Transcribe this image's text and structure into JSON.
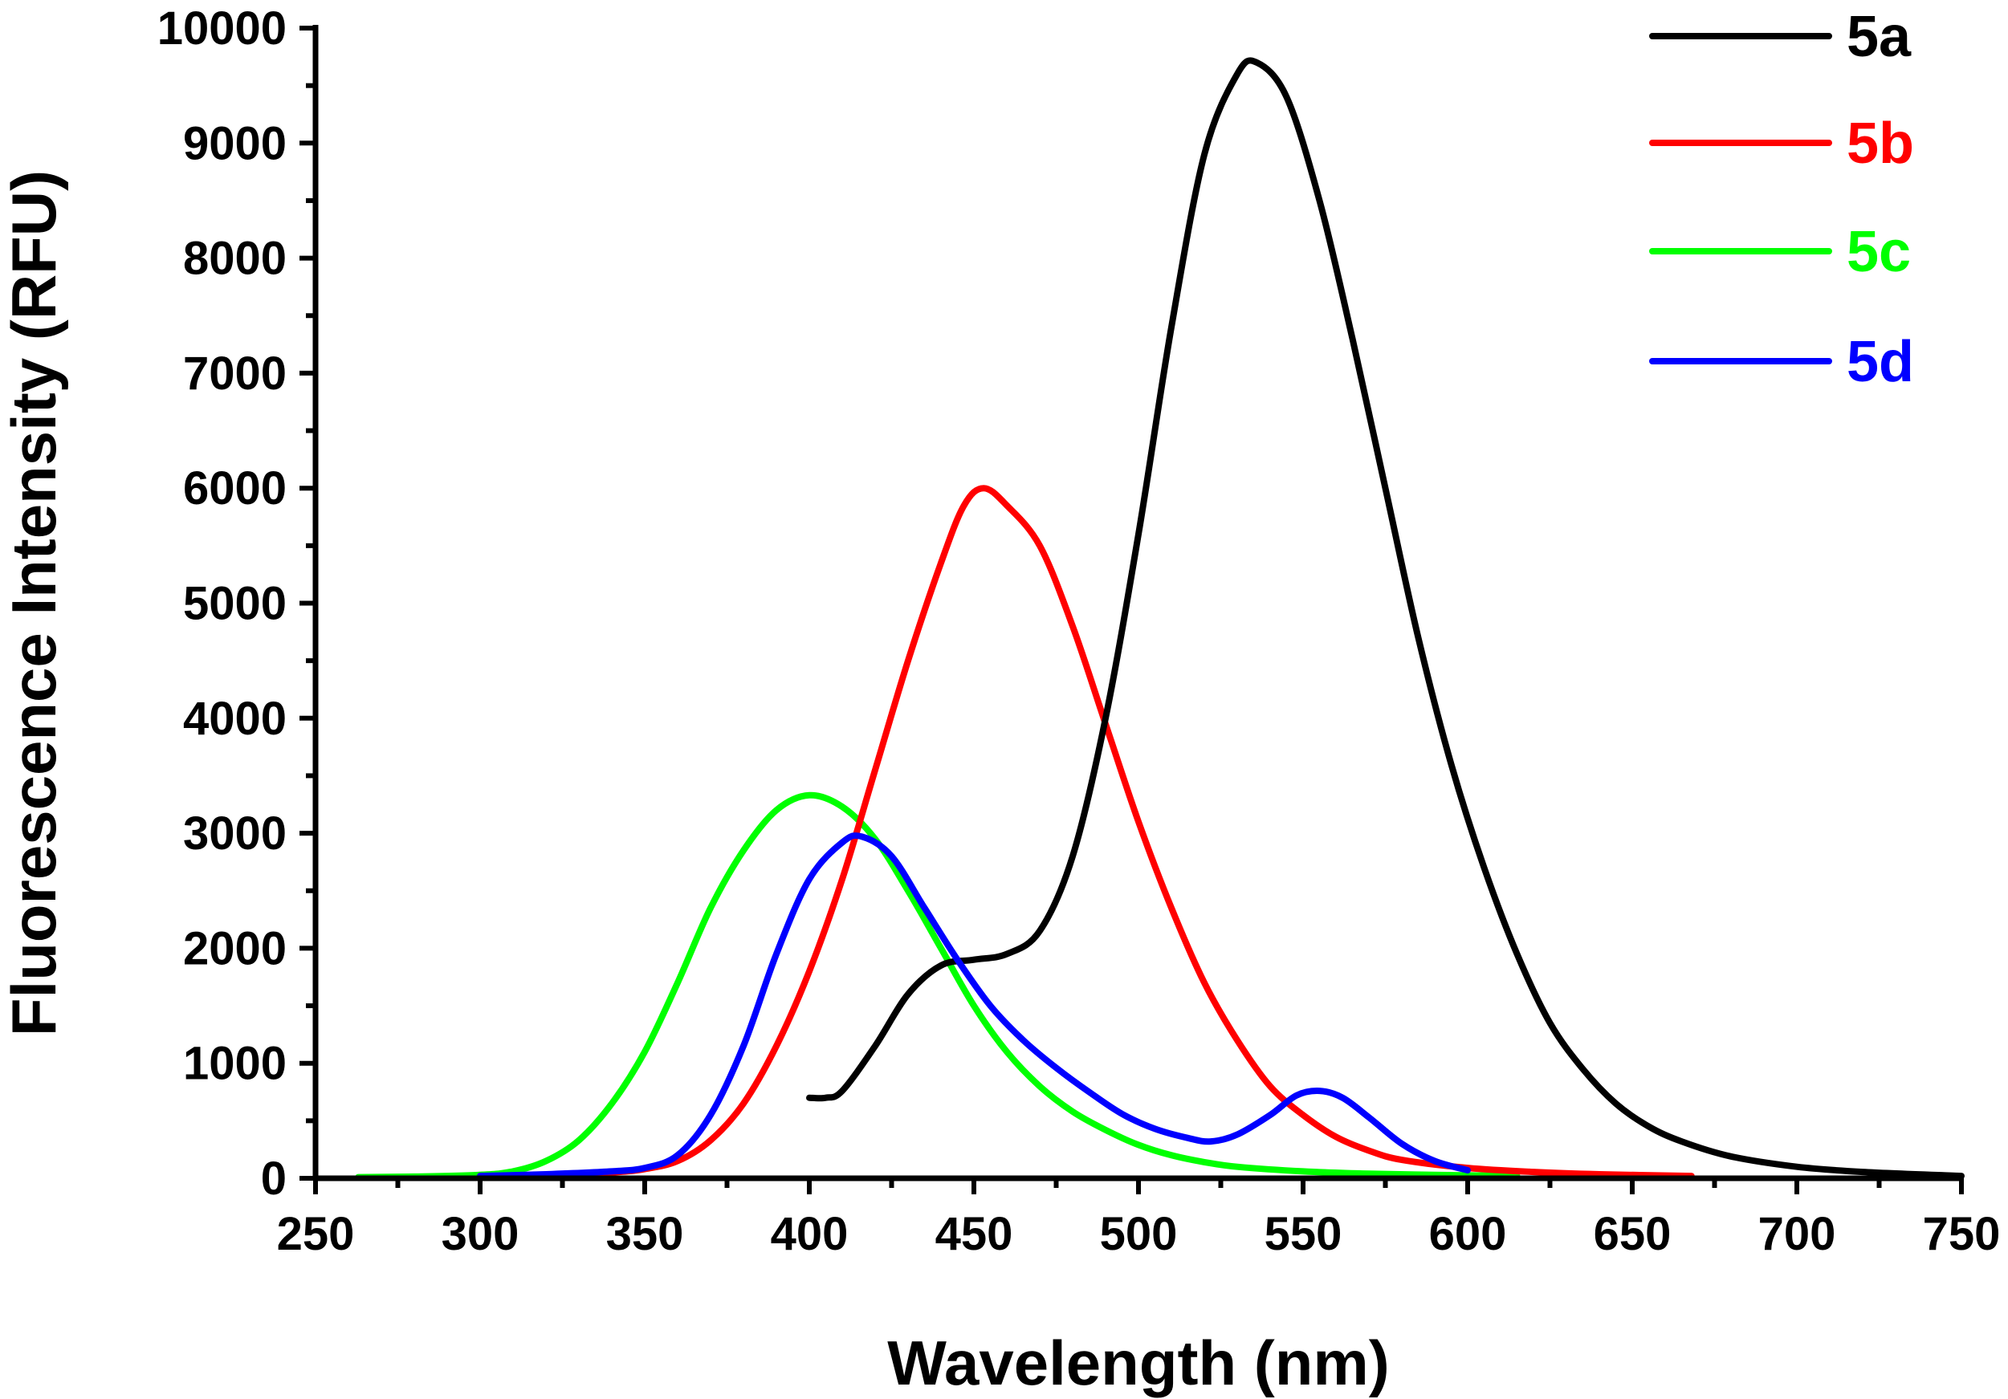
{
  "chart_data": {
    "type": "line",
    "title": "",
    "xlabel": "Wavelength (nm)",
    "ylabel": "Fluorescence Intensity (RFU)",
    "xlim": [
      250,
      750
    ],
    "ylim": [
      0,
      10000
    ],
    "x_ticks": [
      250,
      300,
      350,
      400,
      450,
      500,
      550,
      600,
      650,
      700,
      750
    ],
    "y_ticks": [
      0,
      1000,
      2000,
      3000,
      4000,
      5000,
      6000,
      7000,
      8000,
      9000,
      10000
    ],
    "grid": false,
    "legend_position": "top-right",
    "series": [
      {
        "name": "5a",
        "color": "#000000",
        "points": [
          [
            400,
            700
          ],
          [
            405,
            700
          ],
          [
            410,
            760
          ],
          [
            420,
            1150
          ],
          [
            430,
            1600
          ],
          [
            440,
            1850
          ],
          [
            450,
            1900
          ],
          [
            460,
            1950
          ],
          [
            470,
            2150
          ],
          [
            480,
            2800
          ],
          [
            490,
            4000
          ],
          [
            500,
            5600
          ],
          [
            510,
            7400
          ],
          [
            520,
            8900
          ],
          [
            530,
            9600
          ],
          [
            536,
            9700
          ],
          [
            545,
            9400
          ],
          [
            555,
            8500
          ],
          [
            565,
            7300
          ],
          [
            575,
            6000
          ],
          [
            585,
            4700
          ],
          [
            595,
            3600
          ],
          [
            605,
            2700
          ],
          [
            615,
            1950
          ],
          [
            625,
            1350
          ],
          [
            635,
            950
          ],
          [
            645,
            650
          ],
          [
            655,
            450
          ],
          [
            665,
            320
          ],
          [
            680,
            190
          ],
          [
            700,
            100
          ],
          [
            720,
            55
          ],
          [
            750,
            20
          ]
        ]
      },
      {
        "name": "5b",
        "color": "#ff0000",
        "points": [
          [
            300,
            20
          ],
          [
            320,
            25
          ],
          [
            340,
            50
          ],
          [
            350,
            80
          ],
          [
            360,
            150
          ],
          [
            370,
            330
          ],
          [
            380,
            650
          ],
          [
            390,
            1150
          ],
          [
            400,
            1800
          ],
          [
            410,
            2600
          ],
          [
            420,
            3550
          ],
          [
            430,
            4500
          ],
          [
            440,
            5350
          ],
          [
            447,
            5850
          ],
          [
            453,
            6000
          ],
          [
            460,
            5850
          ],
          [
            470,
            5500
          ],
          [
            480,
            4800
          ],
          [
            490,
            3950
          ],
          [
            500,
            3100
          ],
          [
            510,
            2350
          ],
          [
            520,
            1700
          ],
          [
            530,
            1200
          ],
          [
            540,
            800
          ],
          [
            550,
            550
          ],
          [
            560,
            360
          ],
          [
            570,
            240
          ],
          [
            580,
            160
          ],
          [
            600,
            90
          ],
          [
            620,
            55
          ],
          [
            640,
            35
          ],
          [
            668,
            20
          ]
        ]
      },
      {
        "name": "5c",
        "color": "#00ff00",
        "points": [
          [
            263,
            10
          ],
          [
            280,
            15
          ],
          [
            300,
            30
          ],
          [
            310,
            60
          ],
          [
            320,
            150
          ],
          [
            330,
            330
          ],
          [
            340,
            650
          ],
          [
            350,
            1100
          ],
          [
            360,
            1700
          ],
          [
            370,
            2350
          ],
          [
            380,
            2850
          ],
          [
            390,
            3200
          ],
          [
            400,
            3330
          ],
          [
            410,
            3230
          ],
          [
            420,
            2950
          ],
          [
            430,
            2500
          ],
          [
            440,
            2000
          ],
          [
            450,
            1500
          ],
          [
            460,
            1100
          ],
          [
            470,
            800
          ],
          [
            480,
            580
          ],
          [
            490,
            420
          ],
          [
            500,
            290
          ],
          [
            510,
            200
          ],
          [
            520,
            140
          ],
          [
            530,
            100
          ],
          [
            550,
            60
          ],
          [
            570,
            40
          ],
          [
            600,
            25
          ],
          [
            615,
            20
          ]
        ]
      },
      {
        "name": "5d",
        "color": "#0000ff",
        "points": [
          [
            300,
            20
          ],
          [
            320,
            35
          ],
          [
            340,
            60
          ],
          [
            350,
            90
          ],
          [
            360,
            200
          ],
          [
            370,
            550
          ],
          [
            380,
            1150
          ],
          [
            390,
            1950
          ],
          [
            400,
            2600
          ],
          [
            410,
            2920
          ],
          [
            416,
            2970
          ],
          [
            425,
            2800
          ],
          [
            435,
            2350
          ],
          [
            445,
            1900
          ],
          [
            455,
            1500
          ],
          [
            465,
            1200
          ],
          [
            475,
            960
          ],
          [
            485,
            750
          ],
          [
            495,
            560
          ],
          [
            505,
            430
          ],
          [
            515,
            350
          ],
          [
            522,
            320
          ],
          [
            530,
            380
          ],
          [
            540,
            550
          ],
          [
            548,
            720
          ],
          [
            555,
            760
          ],
          [
            562,
            700
          ],
          [
            570,
            530
          ],
          [
            580,
            300
          ],
          [
            590,
            150
          ],
          [
            600,
            70
          ]
        ]
      }
    ]
  }
}
